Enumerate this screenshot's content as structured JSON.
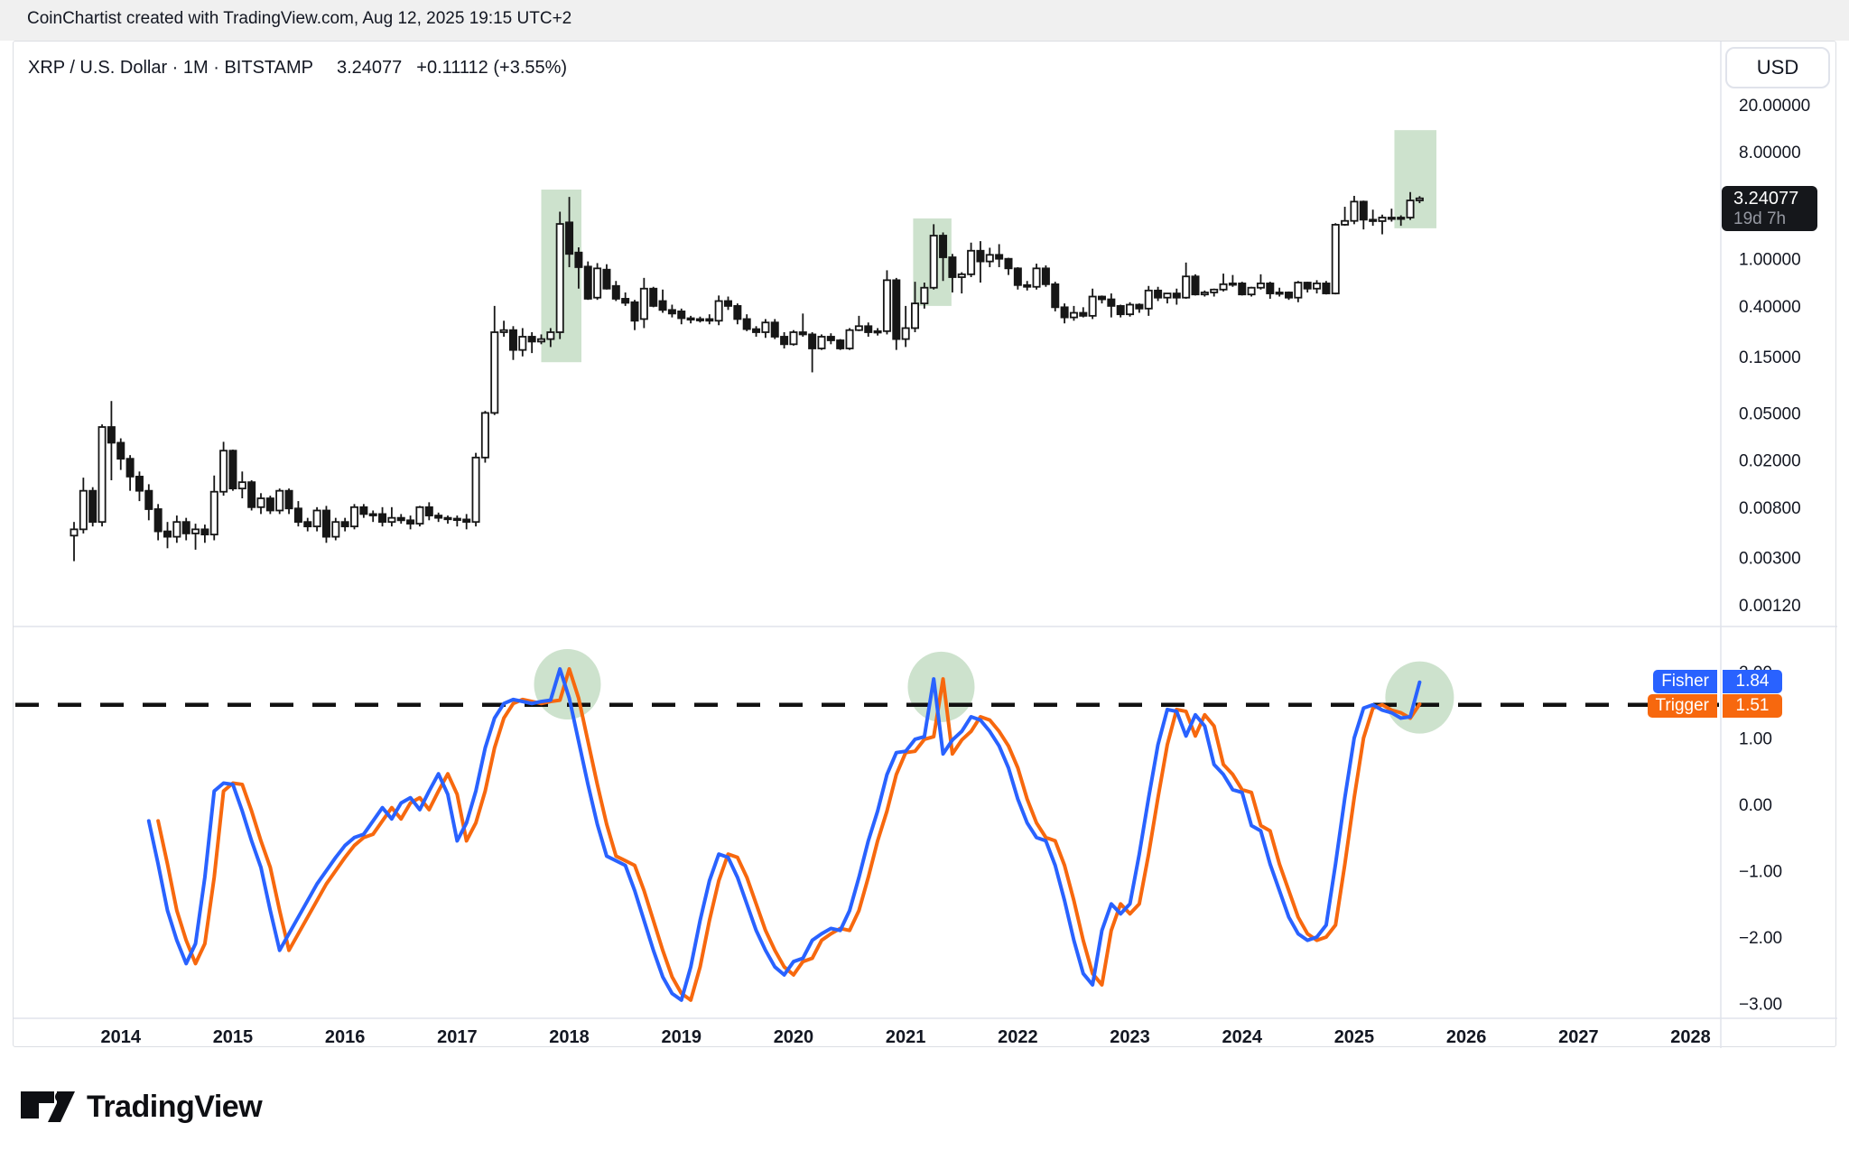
{
  "header": {
    "attribution": "CoinChartist created with TradingView.com, Aug 12, 2025 19:15 UTC+2"
  },
  "symbol_line": {
    "title": "XRP / U.S. Dollar · 1M · BITSTAMP",
    "price": "3.24077",
    "change": "+0.11112 (+3.55%)"
  },
  "price_scale": {
    "currency_label": "USD",
    "badge": {
      "price": "3.24077",
      "countdown": "19d 7h",
      "bg": "#15171b"
    }
  },
  "indicator_badges": {
    "fisher_label": "Fisher",
    "fisher_value": "1.84",
    "fisher_color": "#2962ff",
    "trigger_label": "Trigger",
    "trigger_value": "1.51",
    "trigger_color": "#f7680e"
  },
  "logo": {
    "brand": "TradingView"
  },
  "chart_data": {
    "type": "candlestick",
    "title": "XRP / U.S. Dollar monthly with Fisher Transform",
    "scale": "log",
    "candles": {
      "start": "2013-08",
      "interval": "1M",
      "ohlc": [
        [
          0.0046,
          0.006,
          0.0028,
          0.0052
        ],
        [
          0.0052,
          0.0142,
          0.0048,
          0.011
        ],
        [
          0.011,
          0.0118,
          0.0055,
          0.006
        ],
        [
          0.006,
          0.04,
          0.0055,
          0.038
        ],
        [
          0.038,
          0.063,
          0.0135,
          0.028
        ],
        [
          0.028,
          0.0305,
          0.0165,
          0.0205
        ],
        [
          0.0205,
          0.022,
          0.011,
          0.0145
        ],
        [
          0.0145,
          0.016,
          0.009,
          0.011
        ],
        [
          0.011,
          0.0125,
          0.0062,
          0.0077
        ],
        [
          0.0077,
          0.0085,
          0.0042,
          0.005
        ],
        [
          0.005,
          0.006,
          0.0036,
          0.0045
        ],
        [
          0.0045,
          0.0068,
          0.004,
          0.006
        ],
        [
          0.006,
          0.0065,
          0.0042,
          0.0048
        ],
        [
          0.0048,
          0.0058,
          0.0035,
          0.0052
        ],
        [
          0.0052,
          0.0057,
          0.004,
          0.0047
        ],
        [
          0.0047,
          0.0148,
          0.0042,
          0.0108
        ],
        [
          0.0108,
          0.0285,
          0.01,
          0.024
        ],
        [
          0.024,
          0.0245,
          0.011,
          0.0115
        ],
        [
          0.0115,
          0.016,
          0.0095,
          0.013
        ],
        [
          0.013,
          0.0135,
          0.0075,
          0.008
        ],
        [
          0.008,
          0.0105,
          0.007,
          0.0095
        ],
        [
          0.0095,
          0.01,
          0.007,
          0.0075
        ],
        [
          0.0075,
          0.0115,
          0.007,
          0.011
        ],
        [
          0.011,
          0.0115,
          0.007,
          0.0078
        ],
        [
          0.0078,
          0.009,
          0.0055,
          0.006
        ],
        [
          0.006,
          0.0065,
          0.005,
          0.0055
        ],
        [
          0.0055,
          0.008,
          0.005,
          0.0075
        ],
        [
          0.0075,
          0.0082,
          0.004,
          0.0045
        ],
        [
          0.0045,
          0.0065,
          0.0042,
          0.006
        ],
        [
          0.006,
          0.0065,
          0.005,
          0.0055
        ],
        [
          0.0055,
          0.0085,
          0.0052,
          0.008
        ],
        [
          0.008,
          0.0085,
          0.0065,
          0.007
        ],
        [
          0.007,
          0.0075,
          0.006,
          0.007
        ],
        [
          0.007,
          0.008,
          0.0055,
          0.006
        ],
        [
          0.006,
          0.008,
          0.0055,
          0.0065
        ],
        [
          0.0065,
          0.007,
          0.0058,
          0.0062
        ],
        [
          0.0062,
          0.0068,
          0.0052,
          0.0058
        ],
        [
          0.0058,
          0.0082,
          0.0055,
          0.008
        ],
        [
          0.008,
          0.0088,
          0.0062,
          0.0068
        ],
        [
          0.0068,
          0.0072,
          0.006,
          0.0065
        ],
        [
          0.0065,
          0.0068,
          0.0058,
          0.0064
        ],
        [
          0.0064,
          0.0068,
          0.0055,
          0.0063
        ],
        [
          0.0063,
          0.007,
          0.0052,
          0.006
        ],
        [
          0.006,
          0.023,
          0.0055,
          0.021
        ],
        [
          0.021,
          0.052,
          0.019,
          0.05
        ],
        [
          0.05,
          0.4,
          0.048,
          0.24
        ],
        [
          0.24,
          0.3,
          0.22,
          0.25
        ],
        [
          0.25,
          0.27,
          0.14,
          0.17
        ],
        [
          0.17,
          0.26,
          0.15,
          0.22
        ],
        [
          0.22,
          0.24,
          0.16,
          0.2
        ],
        [
          0.2,
          0.23,
          0.19,
          0.21
        ],
        [
          0.21,
          0.26,
          0.18,
          0.24
        ],
        [
          0.24,
          2.5,
          0.21,
          1.97
        ],
        [
          2.03,
          3.33,
          0.85,
          1.1
        ],
        [
          1.13,
          1.25,
          0.56,
          0.85
        ],
        [
          0.86,
          0.95,
          0.45,
          0.46
        ],
        [
          0.47,
          0.92,
          0.45,
          0.83
        ],
        [
          0.81,
          0.9,
          0.55,
          0.56
        ],
        [
          0.59,
          0.65,
          0.44,
          0.46
        ],
        [
          0.46,
          0.52,
          0.4,
          0.425
        ],
        [
          0.43,
          0.45,
          0.25,
          0.3
        ],
        [
          0.31,
          0.69,
          0.26,
          0.56
        ],
        [
          0.56,
          0.58,
          0.39,
          0.4
        ],
        [
          0.44,
          0.55,
          0.35,
          0.37
        ],
        [
          0.37,
          0.41,
          0.32,
          0.345
        ],
        [
          0.36,
          0.38,
          0.28,
          0.315
        ],
        [
          0.315,
          0.33,
          0.285,
          0.31
        ],
        [
          0.31,
          0.325,
          0.29,
          0.31
        ],
        [
          0.31,
          0.34,
          0.28,
          0.3
        ],
        [
          0.3,
          0.49,
          0.275,
          0.44
        ],
        [
          0.44,
          0.48,
          0.37,
          0.4
        ],
        [
          0.4,
          0.42,
          0.28,
          0.31
        ],
        [
          0.31,
          0.34,
          0.245,
          0.255
        ],
        [
          0.255,
          0.27,
          0.22,
          0.24
        ],
        [
          0.24,
          0.31,
          0.215,
          0.29
        ],
        [
          0.29,
          0.31,
          0.21,
          0.22
        ],
        [
          0.22,
          0.24,
          0.175,
          0.19
        ],
        [
          0.19,
          0.25,
          0.185,
          0.24
        ],
        [
          0.24,
          0.345,
          0.22,
          0.23
        ],
        [
          0.23,
          0.24,
          0.11,
          0.175
        ],
        [
          0.175,
          0.23,
          0.17,
          0.22
        ],
        [
          0.22,
          0.235,
          0.19,
          0.205
        ],
        [
          0.205,
          0.21,
          0.17,
          0.175
        ],
        [
          0.175,
          0.26,
          0.17,
          0.25
        ],
        [
          0.25,
          0.33,
          0.245,
          0.27
        ],
        [
          0.27,
          0.29,
          0.22,
          0.24
        ],
        [
          0.24,
          0.26,
          0.225,
          0.245
        ],
        [
          0.245,
          0.8,
          0.23,
          0.66
        ],
        [
          0.66,
          0.69,
          0.17,
          0.21
        ],
        [
          0.21,
          0.4,
          0.18,
          0.26
        ],
        [
          0.26,
          0.64,
          0.24,
          0.42
        ],
        [
          0.42,
          0.63,
          0.38,
          0.57
        ],
        [
          0.57,
          1.96,
          0.55,
          1.57
        ],
        [
          1.57,
          1.67,
          0.65,
          1.03
        ],
        [
          1.03,
          1.1,
          0.52,
          0.7
        ],
        [
          0.7,
          0.77,
          0.51,
          0.74
        ],
        [
          0.74,
          1.37,
          0.7,
          1.17
        ],
        [
          1.17,
          1.41,
          0.63,
          0.95
        ],
        [
          0.95,
          1.24,
          0.85,
          1.08
        ],
        [
          1.08,
          1.33,
          0.85,
          1.0
        ],
        [
          1.0,
          1.02,
          0.73,
          0.83
        ],
        [
          0.83,
          0.85,
          0.55,
          0.6
        ],
        [
          0.6,
          0.65,
          0.54,
          0.58
        ],
        [
          0.58,
          0.91,
          0.55,
          0.83
        ],
        [
          0.83,
          0.88,
          0.58,
          0.61
        ],
        [
          0.61,
          0.64,
          0.36,
          0.39
        ],
        [
          0.39,
          0.42,
          0.285,
          0.32
        ],
        [
          0.32,
          0.4,
          0.3,
          0.35
        ],
        [
          0.35,
          0.39,
          0.32,
          0.33
        ],
        [
          0.33,
          0.56,
          0.31,
          0.48
        ],
        [
          0.48,
          0.49,
          0.42,
          0.455
        ],
        [
          0.455,
          0.51,
          0.32,
          0.4
        ],
        [
          0.4,
          0.41,
          0.32,
          0.34
        ],
        [
          0.34,
          0.43,
          0.325,
          0.41
        ],
        [
          0.41,
          0.42,
          0.35,
          0.38
        ],
        [
          0.38,
          0.59,
          0.33,
          0.54
        ],
        [
          0.54,
          0.58,
          0.44,
          0.47
        ],
        [
          0.47,
          0.51,
          0.42,
          0.51
        ],
        [
          0.51,
          0.56,
          0.41,
          0.47
        ],
        [
          0.47,
          0.93,
          0.46,
          0.71
        ],
        [
          0.71,
          0.74,
          0.49,
          0.5
        ],
        [
          0.5,
          0.54,
          0.48,
          0.52
        ],
        [
          0.52,
          0.56,
          0.48,
          0.55
        ],
        [
          0.55,
          0.75,
          0.53,
          0.61
        ],
        [
          0.61,
          0.73,
          0.58,
          0.62
        ],
        [
          0.62,
          0.64,
          0.49,
          0.5
        ],
        [
          0.5,
          0.58,
          0.48,
          0.57
        ],
        [
          0.57,
          0.74,
          0.55,
          0.62
        ],
        [
          0.62,
          0.64,
          0.46,
          0.51
        ],
        [
          0.51,
          0.57,
          0.48,
          0.52
        ],
        [
          0.52,
          0.53,
          0.45,
          0.47
        ],
        [
          0.47,
          0.65,
          0.43,
          0.63
        ],
        [
          0.63,
          0.64,
          0.52,
          0.56
        ],
        [
          0.56,
          0.66,
          0.51,
          0.62
        ],
        [
          0.62,
          0.65,
          0.5,
          0.51
        ],
        [
          0.51,
          2.0,
          0.5,
          1.94
        ],
        [
          1.94,
          2.75,
          1.9,
          2.09
        ],
        [
          2.09,
          3.4,
          1.96,
          3.04
        ],
        [
          3.04,
          3.1,
          1.77,
          2.14
        ],
        [
          2.14,
          2.6,
          1.9,
          2.08
        ],
        [
          2.08,
          2.36,
          1.61,
          2.23
        ],
        [
          2.23,
          2.65,
          2.06,
          2.17
        ],
        [
          2.17,
          2.33,
          1.9,
          2.23
        ],
        [
          2.23,
          3.66,
          2.13,
          3.11
        ],
        [
          3.11,
          3.38,
          2.95,
          3.24
        ]
      ]
    },
    "fisher": {
      "start_index": 8,
      "threshold": 1.5,
      "fisher_color": "#2962ff",
      "trigger_color": "#f7680e",
      "trigger_last": 1.51,
      "values": [
        -0.25,
        -0.9,
        -1.6,
        -2.05,
        -2.4,
        -2.1,
        -1.1,
        0.2,
        0.32,
        0.3,
        -0.1,
        -0.55,
        -0.95,
        -1.6,
        -2.2,
        -1.95,
        -1.7,
        -1.45,
        -1.2,
        -1.0,
        -0.8,
        -0.62,
        -0.5,
        -0.45,
        -0.25,
        -0.05,
        -0.22,
        0.02,
        0.1,
        -0.08,
        0.2,
        0.46,
        0.15,
        -0.55,
        -0.28,
        0.2,
        0.85,
        1.3,
        1.52,
        1.58,
        1.55,
        1.52,
        1.55,
        1.57,
        2.04,
        1.6,
        0.95,
        0.3,
        -0.3,
        -0.78,
        -0.85,
        -0.92,
        -1.3,
        -1.75,
        -2.2,
        -2.6,
        -2.85,
        -2.95,
        -2.45,
        -1.75,
        -1.15,
        -0.75,
        -0.8,
        -1.1,
        -1.5,
        -1.9,
        -2.2,
        -2.45,
        -2.57,
        -2.37,
        -2.32,
        -2.05,
        -1.95,
        -1.87,
        -1.9,
        -1.6,
        -1.1,
        -0.55,
        -0.1,
        0.45,
        0.78,
        0.8,
        0.98,
        1.02,
        1.89,
        0.76,
        0.97,
        1.1,
        1.32,
        1.27,
        1.1,
        0.88,
        0.55,
        0.08,
        -0.28,
        -0.5,
        -0.55,
        -0.92,
        -1.45,
        -2.05,
        -2.55,
        -2.72,
        -1.9,
        -1.5,
        -1.65,
        -1.5,
        -0.75,
        0.1,
        0.9,
        1.43,
        1.4,
        1.03,
        1.35,
        1.18,
        0.6,
        0.45,
        0.22,
        0.18,
        -0.32,
        -0.4,
        -0.9,
        -1.3,
        -1.7,
        -1.95,
        -2.05,
        -2.0,
        -1.82,
        -0.9,
        0.1,
        1.0,
        1.45,
        1.5,
        1.42,
        1.38,
        1.3,
        1.32,
        1.84
      ]
    },
    "annotations": {
      "color": "#90bf90",
      "opacity": 0.45,
      "boxes": [
        {
          "i0": 50.0,
          "i1": 54.3,
          "price_top": 3.84,
          "price_bottom": 0.134
        },
        {
          "i0": 89.8,
          "i1": 93.9,
          "price_top": 2.19,
          "price_bottom": 0.4
        },
        {
          "i0": 141.3,
          "i1": 145.8,
          "price_top": 12.2,
          "price_bottom": 1.81
        }
      ],
      "circles": [
        {
          "i": 52.8,
          "v": 1.81,
          "r": 37
        },
        {
          "i": 92.8,
          "v": 1.77,
          "r": 37
        },
        {
          "i": 144.0,
          "v": 1.61,
          "r": 38
        }
      ]
    },
    "price_scale_ticks": [
      {
        "label": "20.00000",
        "value": 20
      },
      {
        "label": "8.00000",
        "value": 8
      },
      {
        "label": "1.00000",
        "value": 1
      },
      {
        "label": "0.40000",
        "value": 0.4
      },
      {
        "label": "0.15000",
        "value": 0.15
      },
      {
        "label": "0.05000",
        "value": 0.05
      },
      {
        "label": "0.02000",
        "value": 0.02
      },
      {
        "label": "0.00800",
        "value": 0.008
      },
      {
        "label": "0.00300",
        "value": 0.003
      },
      {
        "label": "0.00120",
        "value": 0.0012
      }
    ],
    "indicator_scale_ticks": [
      {
        "label": "2.00",
        "value": 2
      },
      {
        "label": "1.00",
        "value": 1
      },
      {
        "label": "0.00",
        "value": 0
      },
      {
        "label": "−1.00",
        "value": -1
      },
      {
        "label": "−2.00",
        "value": -2
      },
      {
        "label": "−3.00",
        "value": -3
      }
    ],
    "x_axis_years": [
      2014,
      2015,
      2016,
      2017,
      2018,
      2019,
      2020,
      2021,
      2022,
      2023,
      2024,
      2025,
      2026,
      2027,
      2028
    ],
    "ylabel": "USD",
    "xlim_years": [
      2013.3,
      2028.6
    ],
    "price_ylim_log": [
      0.0009,
      30
    ],
    "indicator_ylim": [
      -3.6,
      2.7
    ]
  }
}
